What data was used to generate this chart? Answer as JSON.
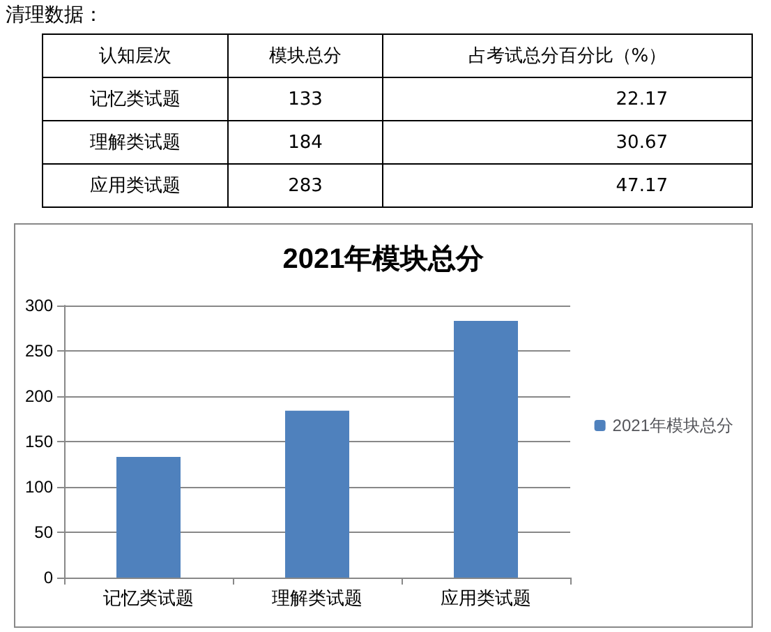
{
  "chart_data": [
    {
      "type": "other",
      "title": "清理数据：",
      "annotations": [
        "认知层次",
        "模块总分",
        "占考试总分百分比（%）",
        "记忆类试题",
        "133",
        "22.17",
        "理解类试题",
        "184",
        "30.67",
        "应用类试题",
        "283",
        "47.17"
      ]
    },
    {
      "type": "bar",
      "title": "2021年模块总分",
      "categories": [
        "记忆类试题",
        "理解类试题",
        "应用类试题"
      ],
      "series": [
        {
          "name": "2021年模块总分",
          "color": "#4f81bd",
          "values": [
            133,
            184,
            283
          ]
        }
      ],
      "ylim": [
        0,
        300
      ],
      "yticks": [
        0,
        50,
        100,
        150,
        200,
        250,
        300
      ],
      "grid": "y",
      "legend": "right"
    }
  ]
}
